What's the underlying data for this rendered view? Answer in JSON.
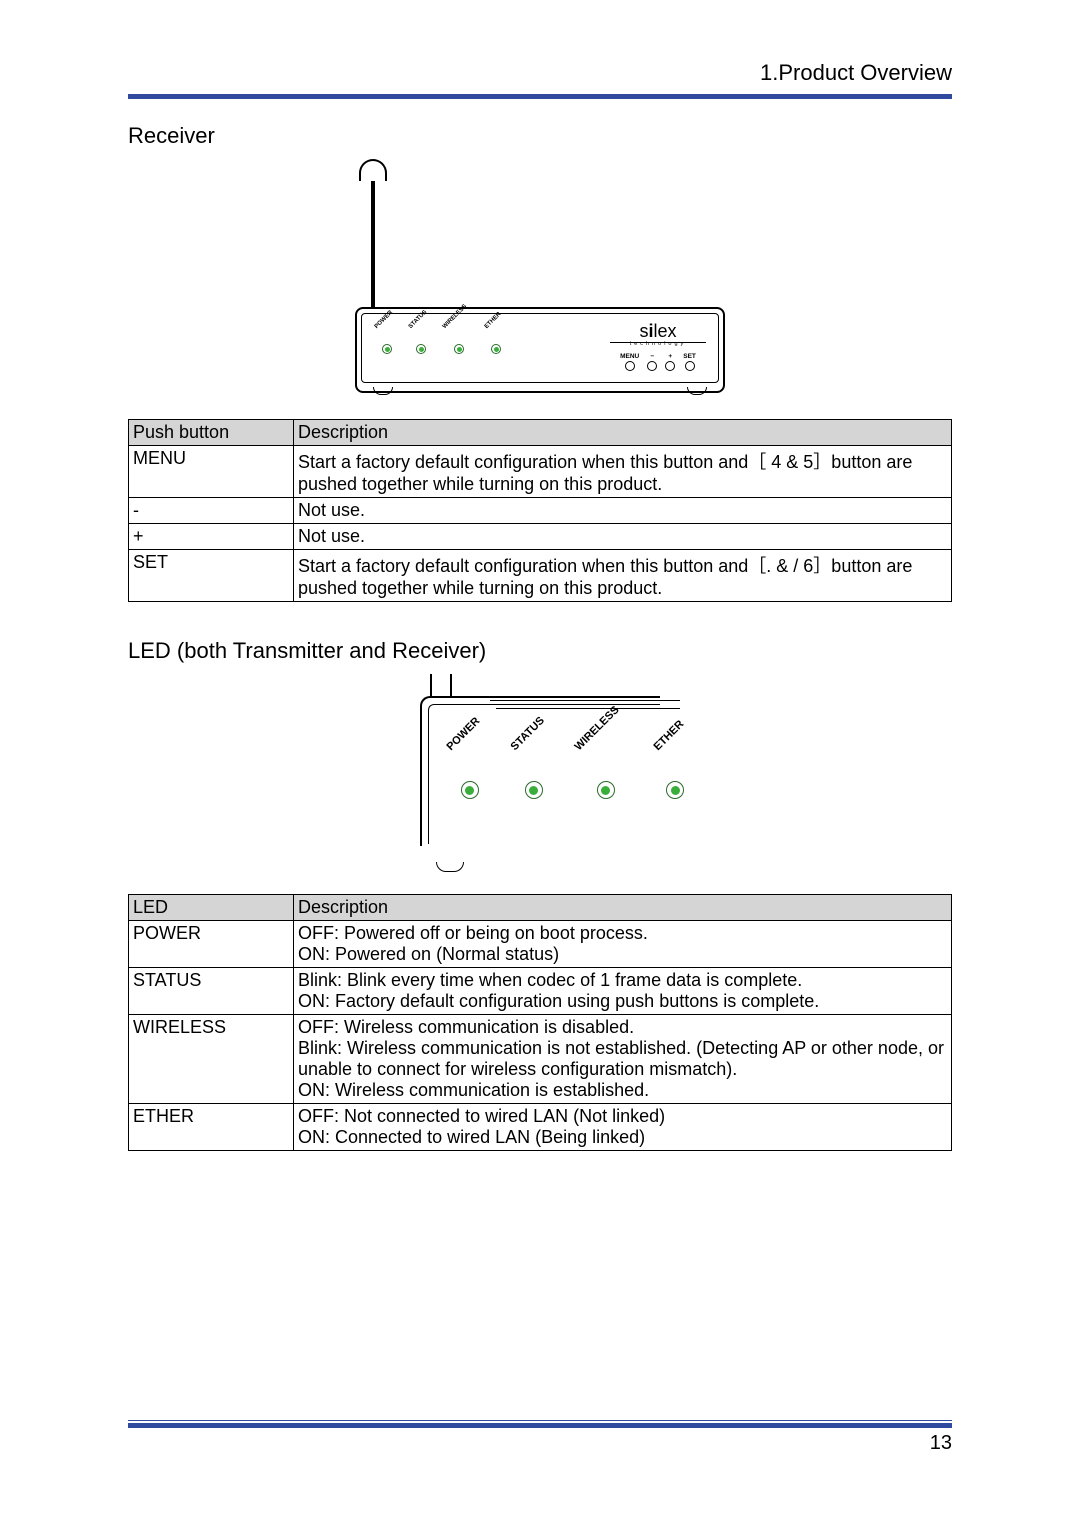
{
  "header": {
    "title": "1.Product Overview"
  },
  "colors": {
    "accent": "#2f4a9e",
    "table_header_bg": "#d5d5d5",
    "led_ring": "#2a6b2a",
    "led_fill": "#3aae3a"
  },
  "receiver": {
    "title": "Receiver",
    "leds": [
      "POWER",
      "STATUS",
      "WIRELESS",
      "ETHER"
    ],
    "brand": "silex",
    "brand_sub": "technology",
    "buttons": [
      "MENU",
      "−",
      "+",
      "SET"
    ]
  },
  "push_button_table": {
    "col0": "Push button",
    "col1": "Description",
    "rows": [
      {
        "name": "MENU",
        "desc": "Start a factory default configuration when this button and［ 4 & 5］button are pushed together while turning on this product."
      },
      {
        "name": "-",
        "desc": "Not use."
      },
      {
        "name": "+",
        "desc": "Not use."
      },
      {
        "name": "SET",
        "desc": "Start a factory default configuration when this button and［. & / 6］button are pushed together while turning on this product."
      }
    ]
  },
  "led_section": {
    "title": "LED (both Transmitter and Receiver)",
    "leds": [
      "POWER",
      "STATUS",
      "WIRELESS",
      "ETHER"
    ]
  },
  "led_table": {
    "col0": "LED",
    "col1": "Description",
    "rows": [
      {
        "name": "POWER",
        "desc": "OFF: Powered off or being on boot process.\nON: Powered on (Normal status)"
      },
      {
        "name": "STATUS",
        "desc": "Blink: Blink every time when codec of 1 frame data is complete.\nON: Factory default configuration using push buttons is complete."
      },
      {
        "name": "WIRELESS",
        "desc": "OFF: Wireless communication is disabled.\nBlink: Wireless communication is not established. (Detecting AP or other node, or unable to connect for wireless configuration mismatch).\nON: Wireless communication is established."
      },
      {
        "name": "ETHER",
        "desc": "OFF: Not connected to wired LAN (Not linked)\nON: Connected to wired LAN (Being linked)"
      }
    ]
  },
  "page_number": "13"
}
